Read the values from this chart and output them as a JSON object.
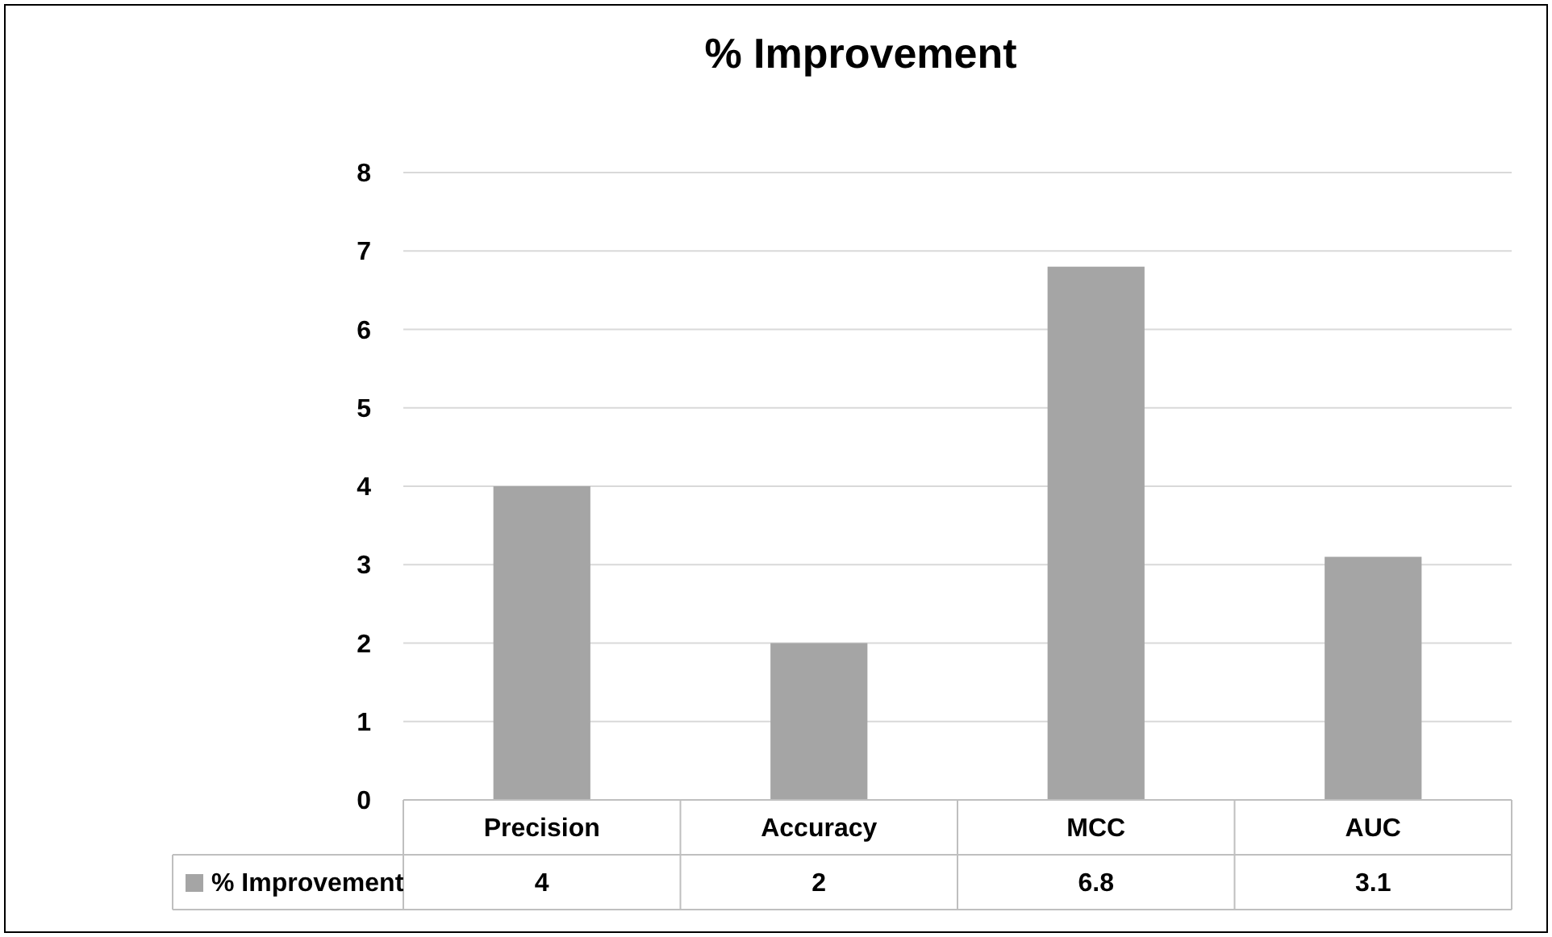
{
  "chart_data": {
    "type": "bar",
    "title": "% Improvement",
    "categories": [
      "Precision",
      "Accuracy",
      "MCC",
      "AUC"
    ],
    "series": [
      {
        "name": "% Improvement",
        "color": "#a5a5a5",
        "values": [
          4,
          2,
          6.8,
          3.1
        ]
      }
    ],
    "ylim": [
      0,
      8
    ],
    "yticks": [
      0,
      1,
      2,
      3,
      4,
      5,
      6,
      7,
      8
    ],
    "grid": "y",
    "legend": "bottom",
    "data_labels": true
  }
}
